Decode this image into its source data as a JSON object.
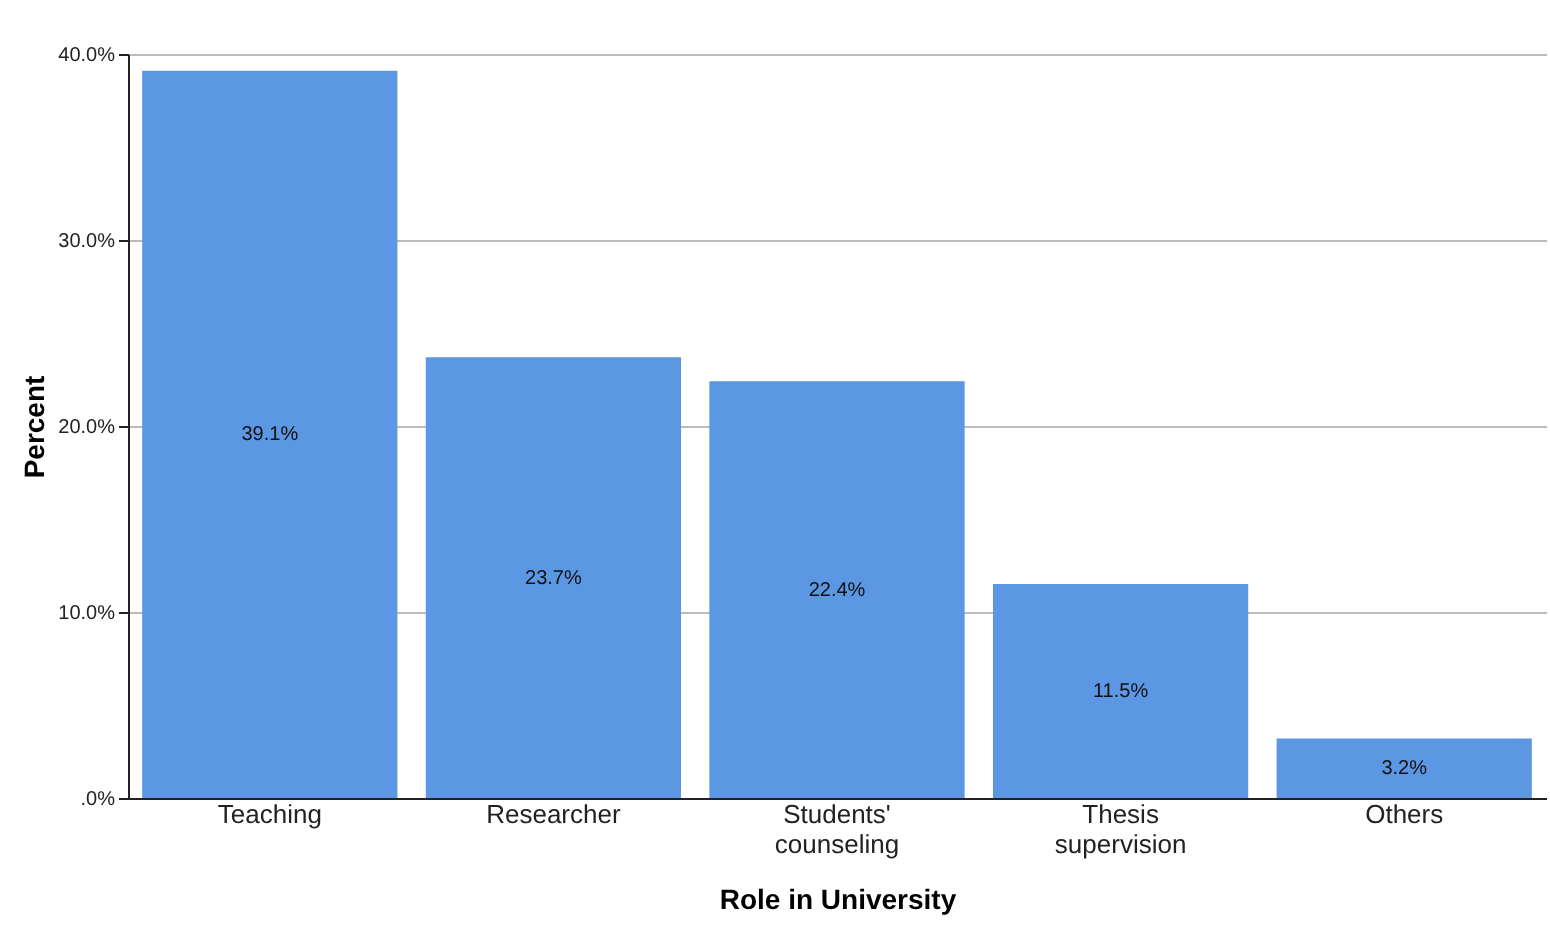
{
  "chart_data": {
    "type": "bar",
    "xlabel": "Role in University",
    "ylabel": "Percent",
    "categories": [
      "Teaching",
      "Researcher",
      "Students' counseling",
      "Thesis supervision",
      "Others"
    ],
    "values": [
      39.1,
      23.7,
      22.4,
      11.5,
      3.2
    ],
    "value_labels": [
      "39.1%",
      "23.7%",
      "22.4%",
      "11.5%",
      "3.2%"
    ],
    "color": "#5b97e2",
    "ylim": [
      0,
      40
    ],
    "yticks": [
      {
        "value": 0,
        "label": ".0%"
      },
      {
        "value": 10,
        "label": "10.0%"
      },
      {
        "value": 20,
        "label": "20.0%"
      },
      {
        "value": 30,
        "label": "30.0%"
      },
      {
        "value": 40,
        "label": "40.0%"
      }
    ],
    "grid": "y"
  }
}
